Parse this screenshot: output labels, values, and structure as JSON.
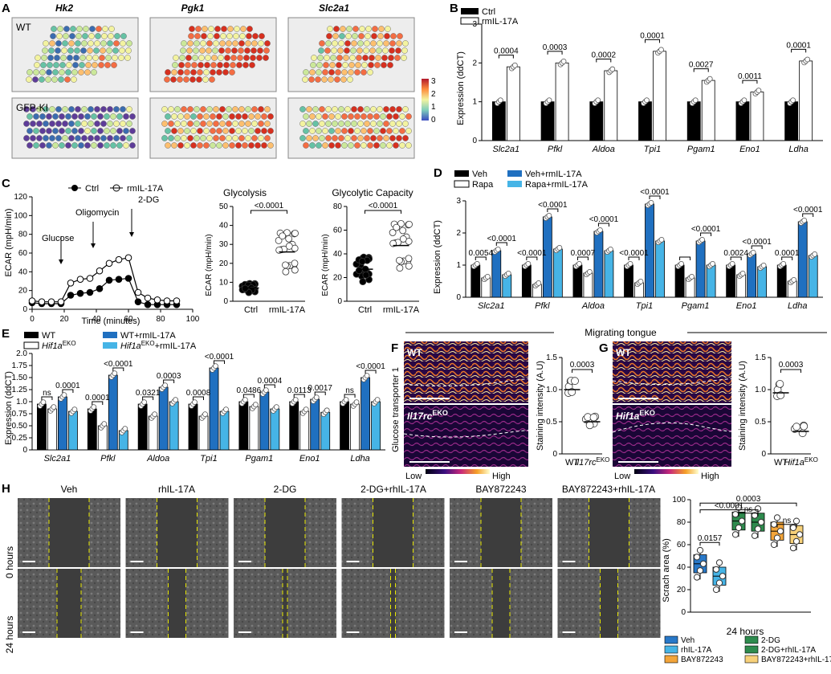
{
  "panels": {
    "A": "A",
    "B": "B",
    "C": "C",
    "D": "D",
    "E": "E",
    "F": "F",
    "G": "G",
    "H": "H"
  },
  "panelA": {
    "genes": [
      "Hk2",
      "Pgk1",
      "Slc2a1"
    ],
    "rows": [
      "WT",
      "GFP-KI"
    ],
    "colorbar_ticks": [
      "3",
      "2",
      "1",
      "0"
    ],
    "colors": {
      "low": "#5e3c99",
      "mid": "#f3f3a0",
      "high": "#d7301f"
    }
  },
  "panelB": {
    "legend": [
      "Ctrl",
      "rmIL-17A"
    ],
    "ylabel": "Expression (ddCT)",
    "yticks": [
      "0",
      "1",
      "2",
      "3"
    ],
    "categories": [
      "Slc2a1",
      "Pfkl",
      "Aldoa",
      "Tpi1",
      "Pgam1",
      "Eno1",
      "Ldha"
    ],
    "pvalues": [
      "0.0004",
      "0.0003",
      "0.0002",
      "0.0001",
      "0.0027",
      "0.0011",
      "0.0001"
    ]
  },
  "panelC": {
    "legend": [
      "Ctrl",
      "rmIL-17A"
    ],
    "ylabel": "ECAR (mpH/min)",
    "xlabel": "Time (minutes)",
    "xticks": [
      "0",
      "20",
      "40",
      "60",
      "80",
      "100"
    ],
    "yticks": [
      "0",
      "20",
      "40",
      "60",
      "80",
      "100",
      "120"
    ],
    "annotations": [
      "Glucose",
      "Oligomycin",
      "2-DG"
    ],
    "sub1": {
      "title": "Glycolysis",
      "ylabel": "ECAR (mpH/min)",
      "yticks": [
        "0",
        "10",
        "20",
        "30",
        "40",
        "50"
      ],
      "xticks": [
        "Ctrl",
        "rmIL-17A"
      ],
      "p": "<0.0001"
    },
    "sub2": {
      "title": "Glycolytic Capacity",
      "ylabel": "ECAR (mpH/min)",
      "yticks": [
        "0",
        "20",
        "40",
        "60",
        "80"
      ],
      "xticks": [
        "Ctrl",
        "rmIL-17A"
      ],
      "p": "<0.0001"
    }
  },
  "panelD": {
    "legend": [
      "Veh",
      "Rapa",
      "Veh+rmIL-17A",
      "Rapa+rmIL-17A"
    ],
    "ylabel": "Expression (ddCT)",
    "yticks": [
      "0",
      "1",
      "2",
      "3"
    ],
    "categories": [
      "Slc2a1",
      "Pfkl",
      "Aldoa",
      "Tpi1",
      "Pgam1",
      "Eno1",
      "Ldha"
    ],
    "p_left": [
      "0.0054",
      "<0.0001",
      "0.0007",
      "<0.0001",
      "",
      "0.0024",
      "0.0001"
    ],
    "p_right": [
      "<0.0001",
      "<0.0001",
      "<0.0001",
      "<0.0001",
      "<0.0001",
      "<0.0001",
      "<0.0001"
    ]
  },
  "panelE": {
    "legend": [
      "WT",
      "Hif1a",
      "EKO",
      "WT+rmIL-17A",
      "Hif1a",
      "EKO",
      "+rmIL-17A"
    ],
    "ylabel": "Expression (ddCT)",
    "yticks": [
      "0",
      "0.25",
      "0.50",
      "0.75",
      "1.0",
      "1.25",
      "1.50",
      "1.75",
      "2.0"
    ],
    "categories": [
      "Slc2a1",
      "Pfkl",
      "Aldoa",
      "Tpi1",
      "Pgam1",
      "Eno1",
      "Ldha"
    ],
    "p_left": [
      "ns",
      "0.0001",
      "0.0321",
      "0.0008",
      "0.0486",
      "0.0113",
      "ns"
    ],
    "p_right": [
      "0.0001",
      "<0.0001",
      "0.0003",
      "<0.0001",
      "0.0004",
      "0.0017",
      "<0.0001"
    ]
  },
  "header_FG": "Migrating tongue",
  "panelF": {
    "img_top": "WT",
    "img_bottom_gene": "Il17rc",
    "img_bottom_sup": "EKO",
    "side_label": "Glucose transporter 1",
    "scale_low": "Low",
    "scale_high": "High",
    "ylabel": "Staining intensity (A.U)",
    "yticks": [
      "0",
      "0.5",
      "1.0",
      "1.5"
    ],
    "p": "0.0003",
    "xticks": [
      "WT",
      "Il17rc",
      "EKO"
    ]
  },
  "panelG": {
    "img_top": "WT",
    "img_bottom_gene": "Hif1a",
    "img_bottom_sup": "EKO",
    "scale_low": "Low",
    "scale_high": "High",
    "ylabel": "Staining intensity (A.U)",
    "yticks": [
      "0",
      "0.5",
      "1.0",
      "1.5"
    ],
    "p": "0.0003",
    "xticks": [
      "WT",
      "Hif1a",
      "EKO"
    ]
  },
  "panelH": {
    "columns": [
      "Veh",
      "rhIL-17A",
      "2-DG",
      "2-DG+rhIL-17A",
      "BAY872243",
      "BAY872243+rhIL-17A"
    ],
    "rows": [
      "0 hours",
      "24 hours"
    ],
    "ylabel": "Scrach area (%)",
    "yticks": [
      "0",
      "20",
      "40",
      "60",
      "80",
      "100"
    ],
    "xlabel": "24 hours",
    "pvalues": [
      "0.0003",
      "<0.0001",
      "0.0157",
      "ns",
      "ns"
    ],
    "legend": [
      "Veh",
      "2-DG",
      "rhIL-17A",
      "2-DG+rhIL-17A",
      "BAY872243",
      "BAY872243+rhIL-17A"
    ],
    "legend_colors": [
      "#2878c8",
      "#2e8b4e",
      "#46b4e6",
      "#2e8b4e",
      "#f3a53a",
      "#f7d17a"
    ]
  },
  "chart_data": [
    {
      "type": "bar",
      "panel": "B",
      "categories": [
        "Slc2a1",
        "Pfkl",
        "Aldoa",
        "Tpi1",
        "Pgam1",
        "Eno1",
        "Ldha"
      ],
      "series": [
        {
          "name": "Ctrl",
          "values": [
            1,
            1,
            1,
            1,
            1,
            1,
            1
          ]
        },
        {
          "name": "rmIL-17A",
          "values": [
            1.9,
            2.0,
            1.8,
            2.3,
            1.55,
            1.25,
            2.05
          ]
        }
      ],
      "ylim": [
        0,
        3
      ]
    },
    {
      "type": "line",
      "panel": "C",
      "x": [
        0,
        6,
        12,
        18,
        24,
        30,
        36,
        42,
        48,
        54,
        60,
        66,
        72,
        78,
        84,
        90
      ],
      "series": [
        {
          "name": "Ctrl",
          "values": [
            7,
            6,
            6,
            6,
            15,
            17,
            18,
            22,
            31,
            32,
            33,
            8,
            5,
            5,
            5,
            5
          ]
        },
        {
          "name": "rmIL-17A",
          "values": [
            9,
            8,
            8,
            8,
            28,
            32,
            33,
            41,
            49,
            53,
            55,
            18,
            12,
            10,
            9,
            9
          ]
        }
      ],
      "xlim": [
        0,
        100
      ],
      "ylim": [
        0,
        120
      ]
    },
    {
      "type": "scatter",
      "panel": "C-Glycolysis",
      "categories": [
        "Ctrl",
        "rmIL-17A"
      ],
      "means": [
        7,
        26
      ],
      "ylim": [
        0,
        50
      ]
    },
    {
      "type": "scatter",
      "panel": "C-Glycolytic Capacity",
      "categories": [
        "Ctrl",
        "rmIL-17A"
      ],
      "means": [
        27,
        47
      ],
      "ylim": [
        0,
        80
      ]
    },
    {
      "type": "bar",
      "panel": "D",
      "categories": [
        "Slc2a1",
        "Pfkl",
        "Aldoa",
        "Tpi1",
        "Pgam1",
        "Eno1",
        "Ldha"
      ],
      "series": [
        {
          "name": "Veh",
          "values": [
            1,
            1,
            1,
            1,
            1,
            1,
            1
          ]
        },
        {
          "name": "Rapa",
          "values": [
            0.6,
            0.4,
            0.75,
            0.45,
            0.6,
            0.7,
            0.5
          ]
        },
        {
          "name": "Veh+rmIL-17A",
          "values": [
            1.45,
            2.5,
            2.05,
            2.9,
            1.75,
            1.35,
            2.35
          ]
        },
        {
          "name": "Rapa+rmIL-17A",
          "values": [
            0.7,
            1.5,
            1.45,
            1.75,
            1.0,
            0.95,
            1.3
          ]
        }
      ],
      "ylim": [
        0,
        3
      ]
    },
    {
      "type": "bar",
      "panel": "E",
      "categories": [
        "Slc2a1",
        "Pfkl",
        "Aldoa",
        "Tpi1",
        "Pgam1",
        "Eno1",
        "Ldha"
      ],
      "series": [
        {
          "name": "WT",
          "values": [
            0.95,
            0.85,
            0.95,
            0.95,
            1.0,
            1.0,
            1.0
          ]
        },
        {
          "name": "Hif1aEKO",
          "values": [
            0.85,
            0.5,
            0.7,
            0.7,
            0.9,
            0.8,
            0.95
          ]
        },
        {
          "name": "WT+rmIL-17A",
          "values": [
            1.1,
            1.55,
            1.3,
            1.7,
            1.2,
            1.05,
            1.5
          ]
        },
        {
          "name": "Hif1aEKO+rmIL-17A",
          "values": [
            0.8,
            0.4,
            1.0,
            0.8,
            0.85,
            0.78,
            1.0
          ]
        }
      ],
      "ylim": [
        0,
        2.0
      ]
    },
    {
      "type": "scatter",
      "panel": "F",
      "categories": [
        "WT",
        "Il17rcEKO"
      ],
      "means": [
        1.0,
        0.5
      ],
      "ylim": [
        0,
        1.5
      ]
    },
    {
      "type": "scatter",
      "panel": "G",
      "categories": [
        "WT",
        "Hif1aEKO"
      ],
      "means": [
        0.95,
        0.35
      ],
      "ylim": [
        0,
        1.5
      ]
    },
    {
      "type": "bar",
      "panel": "H",
      "categories": [
        "Veh",
        "rhIL-17A",
        "2-DG",
        "2-DG+rhIL-17A",
        "BAY872243",
        "BAY872243+rhIL-17A"
      ],
      "values": [
        43,
        32,
        81,
        80,
        72,
        69
      ],
      "ylim": [
        0,
        100
      ]
    }
  ]
}
